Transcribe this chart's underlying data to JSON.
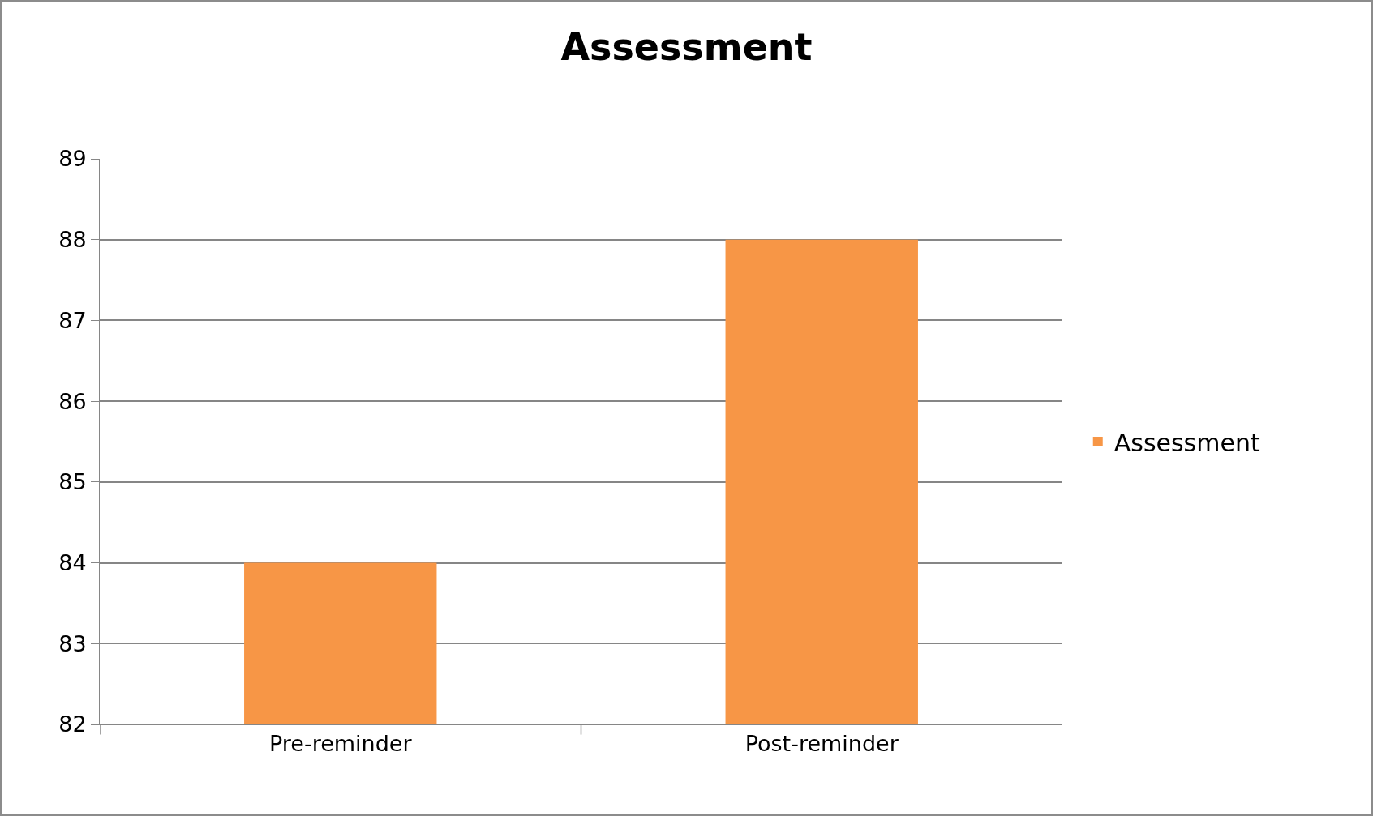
{
  "chart_data": {
    "type": "bar",
    "title": "Assessment",
    "categories": [
      "Pre-reminder",
      "Post-reminder"
    ],
    "series": [
      {
        "name": "Assessment",
        "color": "#f79646",
        "values": [
          84,
          88
        ]
      }
    ],
    "ylim": [
      82,
      89
    ],
    "yticks": [
      82,
      83,
      84,
      85,
      86,
      87,
      88,
      89
    ],
    "grid": "y",
    "legend": "right"
  }
}
